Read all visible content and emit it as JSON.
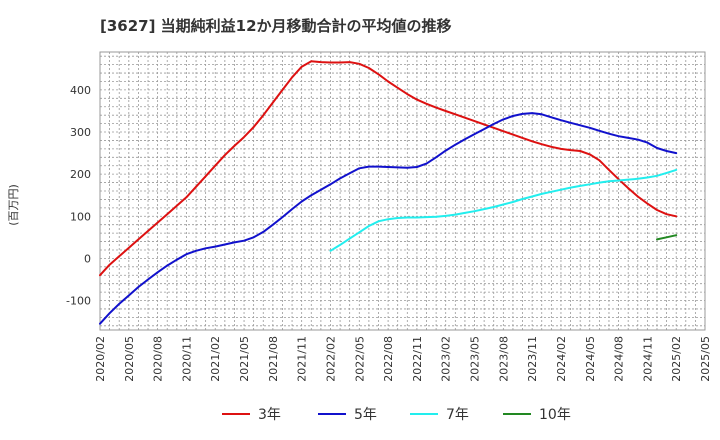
{
  "chart_data": {
    "type": "line",
    "title": "[3627]  当期純利益12か月移動合計の平均値の推移",
    "ylabel": "(百万円)",
    "xlabel": "",
    "ylim": [
      -170,
      490
    ],
    "yticks": [
      -100,
      0,
      100,
      200,
      300,
      400
    ],
    "ytick_labels": [
      "-100",
      "0",
      "100",
      "200",
      "300",
      "400"
    ],
    "xlim": [
      "2020-02",
      "2025-05"
    ],
    "x_tick_labels": [
      "2020/02",
      "2020/05",
      "2020/08",
      "2020/11",
      "2021/02",
      "2021/05",
      "2021/08",
      "2021/11",
      "2022/02",
      "2022/05",
      "2022/08",
      "2022/11",
      "2023/02",
      "2023/05",
      "2023/08",
      "2023/11",
      "2024/02",
      "2024/05",
      "2024/08",
      "2024/11",
      "2025/02",
      "2025/05"
    ],
    "grid": true,
    "legend_position": "bottom",
    "series": [
      {
        "name": "3年",
        "color": "#dd1111",
        "x": [
          "2020-02",
          "2020-03",
          "2020-04",
          "2020-05",
          "2020-06",
          "2020-07",
          "2020-08",
          "2020-09",
          "2020-10",
          "2020-11",
          "2020-12",
          "2021-01",
          "2021-02",
          "2021-03",
          "2021-04",
          "2021-05",
          "2021-06",
          "2021-07",
          "2021-08",
          "2021-09",
          "2021-10",
          "2021-11",
          "2021-12",
          "2022-01",
          "2022-02",
          "2022-03",
          "2022-04",
          "2022-05",
          "2022-06",
          "2022-07",
          "2022-08",
          "2022-09",
          "2022-10",
          "2022-11",
          "2022-12",
          "2023-01",
          "2023-02",
          "2023-03",
          "2023-04",
          "2023-05",
          "2023-06",
          "2023-07",
          "2023-08",
          "2023-09",
          "2023-10",
          "2023-11",
          "2023-12",
          "2024-01",
          "2024-02",
          "2024-03",
          "2024-04",
          "2024-05",
          "2024-06",
          "2024-07",
          "2024-08",
          "2024-09",
          "2024-10",
          "2024-11",
          "2024-12",
          "2025-01",
          "2025-02"
        ],
        "values": [
          -40,
          -15,
          5,
          25,
          45,
          65,
          85,
          105,
          125,
          145,
          170,
          195,
          220,
          245,
          267,
          288,
          312,
          340,
          370,
          400,
          430,
          455,
          468,
          466,
          465,
          465,
          466,
          462,
          452,
          437,
          420,
          405,
          390,
          377,
          367,
          358,
          350,
          342,
          334,
          326,
          318,
          310,
          302,
          294,
          286,
          278,
          271,
          265,
          260,
          257,
          255,
          247,
          233,
          210,
          188,
          167,
          147,
          130,
          115,
          105,
          100
        ]
      },
      {
        "name": "5年",
        "color": "#1111cc",
        "x": [
          "2020-02",
          "2020-03",
          "2020-04",
          "2020-05",
          "2020-06",
          "2020-07",
          "2020-08",
          "2020-09",
          "2020-10",
          "2020-11",
          "2020-12",
          "2021-01",
          "2021-02",
          "2021-03",
          "2021-04",
          "2021-05",
          "2021-06",
          "2021-07",
          "2021-08",
          "2021-09",
          "2021-10",
          "2021-11",
          "2021-12",
          "2022-01",
          "2022-02",
          "2022-03",
          "2022-04",
          "2022-05",
          "2022-06",
          "2022-07",
          "2022-08",
          "2022-09",
          "2022-10",
          "2022-11",
          "2022-12",
          "2023-01",
          "2023-02",
          "2023-03",
          "2023-04",
          "2023-05",
          "2023-06",
          "2023-07",
          "2023-08",
          "2023-09",
          "2023-10",
          "2023-11",
          "2023-12",
          "2024-01",
          "2024-02",
          "2024-03",
          "2024-04",
          "2024-05",
          "2024-06",
          "2024-07",
          "2024-08",
          "2024-09",
          "2024-10",
          "2024-11",
          "2024-12",
          "2025-01",
          "2025-02"
        ],
        "values": [
          -155,
          -130,
          -108,
          -88,
          -68,
          -50,
          -33,
          -17,
          -3,
          10,
          18,
          24,
          28,
          33,
          38,
          42,
          50,
          63,
          80,
          98,
          117,
          135,
          150,
          163,
          176,
          190,
          202,
          214,
          218,
          218,
          217,
          216,
          215,
          217,
          225,
          240,
          256,
          270,
          283,
          295,
          307,
          319,
          330,
          338,
          343,
          345,
          342,
          335,
          328,
          322,
          316,
          310,
          303,
          296,
          290,
          286,
          282,
          275,
          262,
          255,
          250
        ]
      },
      {
        "name": "7年",
        "color": "#22eeee",
        "x": [
          "2022-02",
          "2022-03",
          "2022-04",
          "2022-05",
          "2022-06",
          "2022-07",
          "2022-08",
          "2022-09",
          "2022-10",
          "2022-11",
          "2022-12",
          "2023-01",
          "2023-02",
          "2023-03",
          "2023-04",
          "2023-05",
          "2023-06",
          "2023-07",
          "2023-08",
          "2023-09",
          "2023-10",
          "2023-11",
          "2023-12",
          "2024-01",
          "2024-02",
          "2024-03",
          "2024-04",
          "2024-05",
          "2024-06",
          "2024-07",
          "2024-08",
          "2024-09",
          "2024-10",
          "2024-11",
          "2024-12",
          "2025-01",
          "2025-02"
        ],
        "values": [
          18,
          32,
          47,
          62,
          77,
          88,
          93,
          96,
          97,
          97,
          98,
          99,
          101,
          104,
          108,
          112,
          117,
          122,
          128,
          134,
          141,
          147,
          153,
          158,
          163,
          168,
          172,
          176,
          180,
          183,
          185,
          187,
          189,
          192,
          196,
          203,
          210
        ]
      },
      {
        "name": "10年",
        "color": "#228822",
        "x": [
          "2024-12",
          "2025-01",
          "2025-02"
        ],
        "values": [
          45,
          50,
          55
        ]
      }
    ]
  }
}
